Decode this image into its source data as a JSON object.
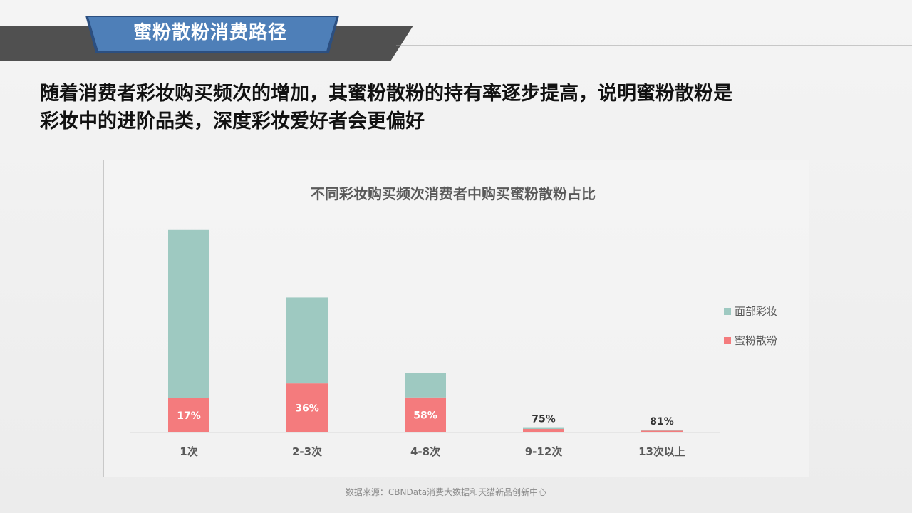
{
  "header": {
    "title": "蜜粉散粉消费路径"
  },
  "headline": {
    "line1": "随着消费者彩妆购买频次的增加，其蜜粉散粉的持有率逐步提高，说明蜜粉散粉是",
    "line2": "彩妆中的进阶品类，深度彩妆爱好者会更偏好"
  },
  "colors": {
    "accent_blue": "#4e7fb8",
    "header_dark": "#505050",
    "series_face": "#9ec9c1",
    "series_powder": "#f47b7d",
    "axis_text": "#595959"
  },
  "chart_data": {
    "type": "bar",
    "stacked": true,
    "title": "不同彩妆购买频次消费者中购买蜜粉散粉占比",
    "categories": [
      "1次",
      "2-3次",
      "4-8次",
      "9-12次",
      "13次以上"
    ],
    "series": [
      {
        "name": "蜜粉散粉",
        "values": [
          16.5,
          23.5,
          16.8,
          1.7,
          0.9
        ],
        "color": "#f47b7d"
      },
      {
        "name": "面部彩妆",
        "values": [
          80.5,
          41.2,
          11.8,
          0.5,
          0.2
        ],
        "color": "#9ec9c1"
      }
    ],
    "data_labels": [
      "17%",
      "36%",
      "58%",
      "75%",
      "81%"
    ],
    "ylim": [
      0,
      100
    ],
    "grid": false,
    "legend_position": "right",
    "legend_order": [
      "面部彩妆",
      "蜜粉散粉"
    ]
  },
  "source_note": "数据来源：CBNData消费大数据和天猫新品创新中心"
}
